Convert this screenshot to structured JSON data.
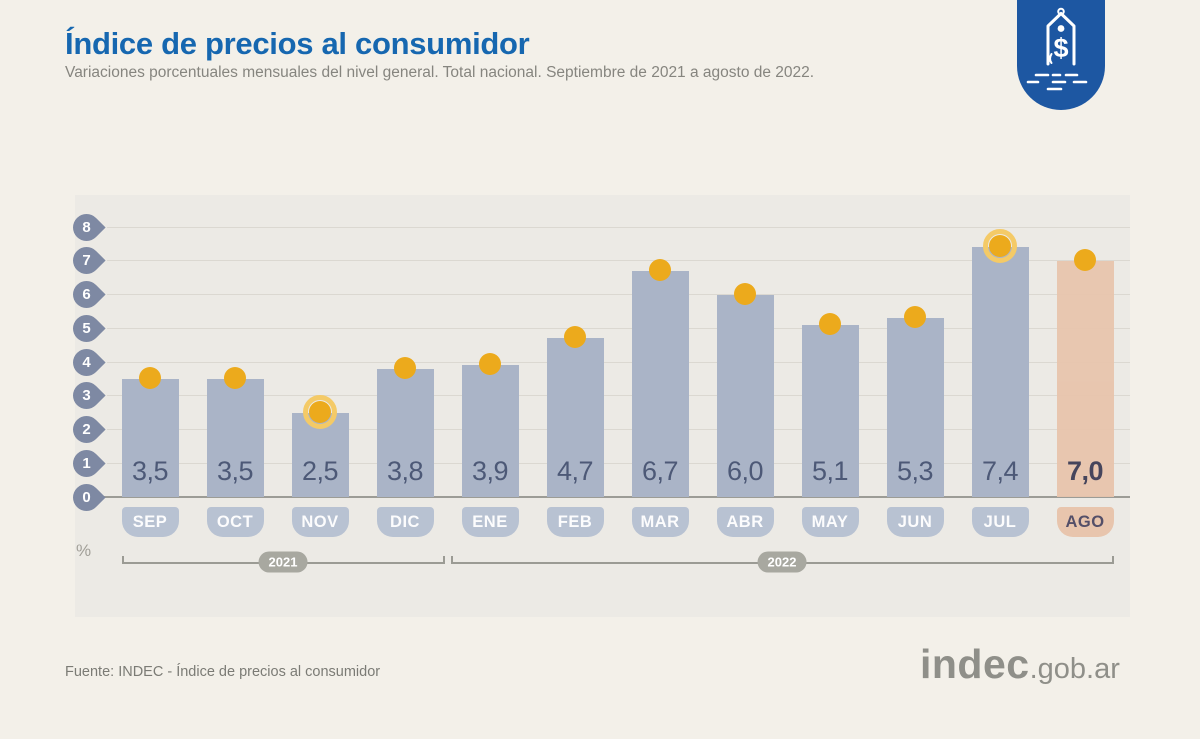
{
  "header": {
    "title": "Índice de precios al consumidor",
    "subtitle": "Variaciones porcentuales mensuales del nivel general. Total nacional. Septiembre de 2021 a agosto de 2022."
  },
  "badge": {
    "icon": "price-tag-icon",
    "symbol": "$"
  },
  "chart_data": {
    "type": "bar",
    "title": "Índice de precios al consumidor",
    "subtitle": "Variaciones porcentuales mensuales del nivel general. Total nacional. Septiembre de 2021 a agosto de 2022.",
    "categories": [
      "SEP",
      "OCT",
      "NOV",
      "DIC",
      "ENE",
      "FEB",
      "MAR",
      "ABR",
      "MAY",
      "JUN",
      "JUL",
      "AGO"
    ],
    "values": [
      3.5,
      3.5,
      2.5,
      3.8,
      3.9,
      4.7,
      6.7,
      6.0,
      5.1,
      5.3,
      7.4,
      7.0
    ],
    "value_labels": [
      "3,5",
      "3,5",
      "2,5",
      "3,8",
      "3,9",
      "4,7",
      "6,7",
      "6,0",
      "5,1",
      "5,3",
      "7,4",
      "7,0"
    ],
    "unit": "%",
    "ylabel": "%",
    "xlabel": "",
    "y_ticks": [
      0,
      1,
      2,
      3,
      4,
      5,
      6,
      7,
      8
    ],
    "ylim": [
      0,
      8
    ],
    "grid": true,
    "legend": false,
    "highlighted_points": [
      "NOV",
      "JUL"
    ],
    "highlight_bar": "AGO",
    "year_groups": [
      {
        "label": "2021",
        "from": "SEP",
        "to": "DIC"
      },
      {
        "label": "2022",
        "from": "ENE",
        "to": "AGO"
      }
    ]
  },
  "theme": {
    "page_bg": "#f3f0e9",
    "panel_bg": "#eceae5",
    "accent_title": "#1667b0",
    "bar": "#aab4c7",
    "bar_highlight": "#e8c5ad",
    "month_pill": "#b8c2d2",
    "value_text": "#4d5977",
    "value_text_highlight": "#3e3d55",
    "month_text_highlight": "#544f68",
    "dot": "#ecaa1c",
    "dot_halo": "#f4ca67",
    "axis_pin": "#7e89a3",
    "gridline": "#dbd8d1",
    "baseline": "#9c9c96",
    "year_pill": "#a8a8a0",
    "badge": "#1d57a2"
  },
  "footer": {
    "source": "Fuente: INDEC - Índice de precios al consumidor",
    "logo_main": "indec",
    "logo_suffix": ".gob.ar"
  }
}
